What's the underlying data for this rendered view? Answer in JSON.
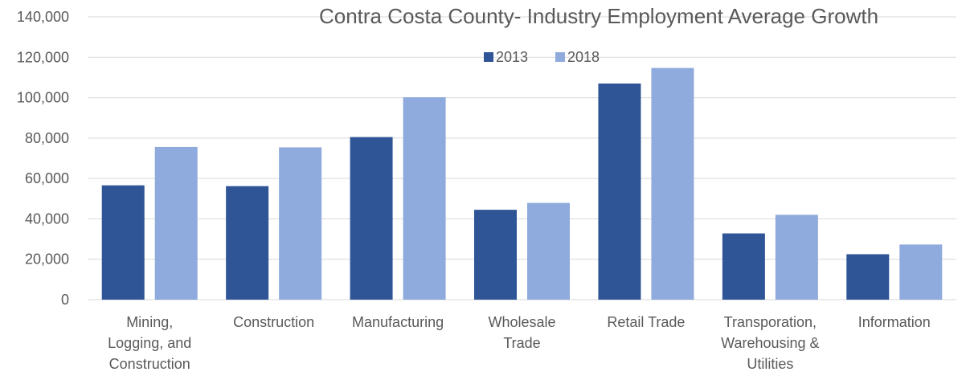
{
  "chart_data": {
    "type": "bar",
    "title": "Contra Costa County- Industry Employment Average Growth",
    "categories": [
      [
        "Mining,",
        "Logging, and",
        "Construction"
      ],
      [
        "Construction"
      ],
      [
        "Manufacturing"
      ],
      [
        "Wholesale",
        "Trade"
      ],
      [
        "Retail Trade"
      ],
      [
        "Transporation,",
        "Warehousing &",
        "Utilities"
      ],
      [
        "Information"
      ]
    ],
    "series": [
      {
        "name": "2013",
        "color": "#2f5597",
        "values": [
          56600,
          56200,
          80500,
          44500,
          107000,
          32800,
          22500
        ]
      },
      {
        "name": "2018",
        "color": "#8faadc",
        "values": [
          75600,
          75400,
          100200,
          47900,
          114700,
          42000,
          27300
        ]
      }
    ],
    "ylim": [
      0,
      140000
    ],
    "yticks": [
      0,
      20000,
      40000,
      60000,
      80000,
      100000,
      120000,
      140000
    ],
    "ytick_labels": [
      "0",
      "20,000",
      "40,000",
      "60,000",
      "80,000",
      "100,000",
      "120,000",
      "140,000"
    ],
    "grid": true,
    "legend": "top-center"
  }
}
